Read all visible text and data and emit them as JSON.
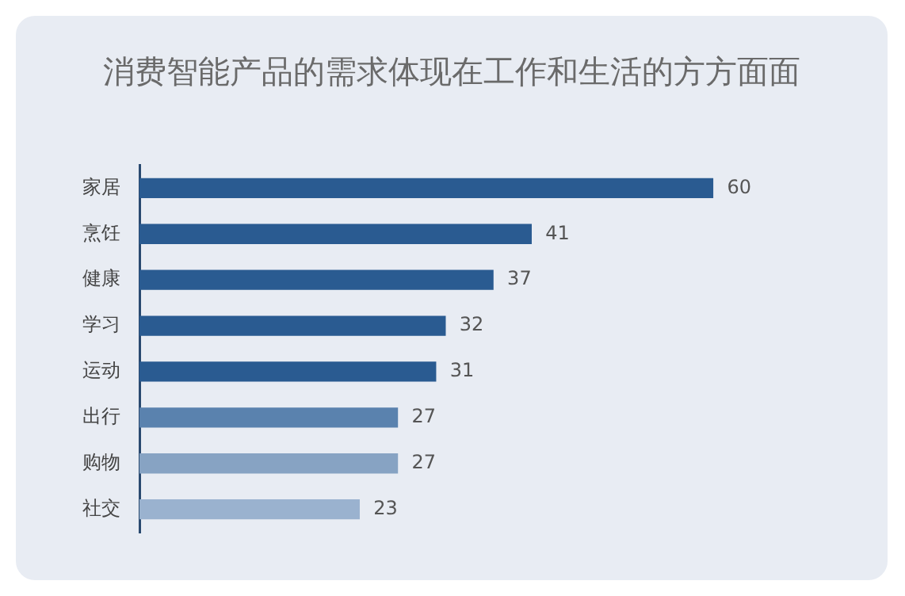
{
  "chart_data": {
    "type": "bar",
    "orientation": "horizontal",
    "title": "消费智能产品的需求体现在工作和生活的方方面面",
    "categories": [
      "家居",
      "烹饪",
      "健康",
      "学习",
      "运动",
      "出行",
      "购物",
      "社交"
    ],
    "values": [
      60,
      41,
      37,
      32,
      31,
      27,
      27,
      23
    ],
    "colors": [
      "#2a5b91",
      "#2a5b91",
      "#2a5b91",
      "#2a5b91",
      "#2a5b91",
      "#5a82ae",
      "#87a3c3",
      "#9ab2cf"
    ],
    "data_labels": true,
    "legend": false
  }
}
